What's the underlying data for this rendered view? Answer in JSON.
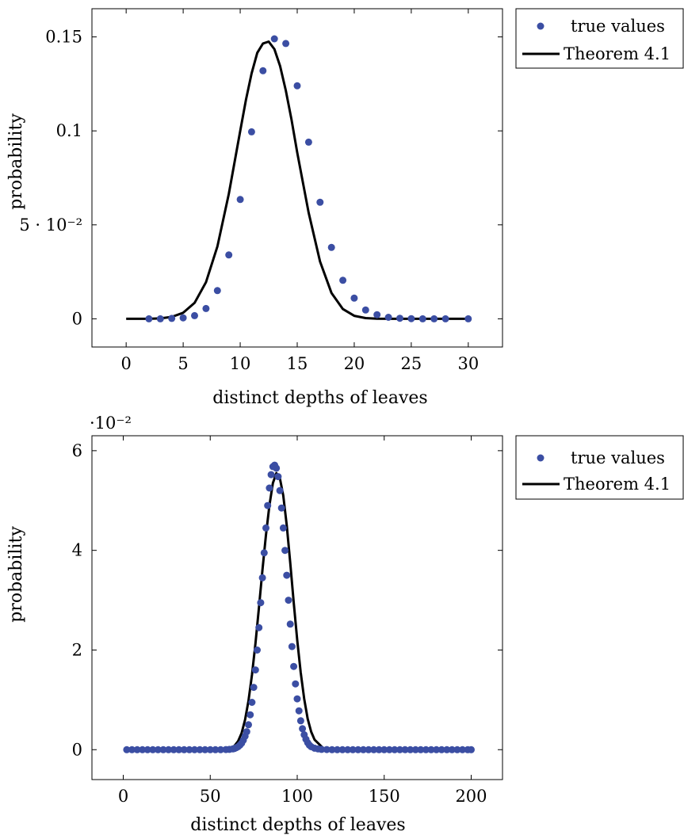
{
  "colors": {
    "points": "#3b4ea3",
    "curve": "#000000",
    "frame": "#000000"
  },
  "chart_data": [
    {
      "type": "scatter",
      "xlabel": "distinct depths of leaves",
      "ylabel": "probability",
      "xlim": [
        -3,
        33
      ],
      "ylim": [
        -0.015,
        0.165
      ],
      "xticks": [
        0,
        5,
        10,
        15,
        20,
        25,
        30
      ],
      "xtick_labels": [
        "0",
        "5",
        "10",
        "15",
        "20",
        "25",
        "30"
      ],
      "yticks": [
        0,
        0.05,
        0.1,
        0.15
      ],
      "ytick_labels": [
        "0",
        "5 · 10⁻²",
        "0.1",
        "0.15"
      ],
      "legend_position": "outside-top-right",
      "series": [
        {
          "name": "true values",
          "kind": "points",
          "x": [
            2,
            3,
            4,
            5,
            6,
            7,
            8,
            9,
            10,
            11,
            12,
            13,
            14,
            15,
            16,
            17,
            18,
            19,
            20,
            21,
            22,
            23,
            24,
            25,
            26,
            27,
            28,
            30
          ],
          "y": [
            0,
            0,
            0.0002,
            0.0005,
            0.0017,
            0.0055,
            0.015,
            0.034,
            0.0635,
            0.0995,
            0.132,
            0.149,
            0.1465,
            0.124,
            0.094,
            0.062,
            0.038,
            0.0205,
            0.011,
            0.0047,
            0.0022,
            0.0008,
            0.0003,
            0.0001,
            0,
            0,
            0,
            0
          ]
        },
        {
          "name": "Theorem 4.1",
          "kind": "curve",
          "x": [
            0,
            1,
            2,
            3,
            4,
            5,
            6,
            7,
            8,
            9,
            10,
            10.5,
            11,
            11.5,
            12,
            12.5,
            13,
            13.5,
            14,
            14.5,
            15,
            16,
            17,
            18,
            19,
            20,
            21,
            22,
            23,
            24,
            25,
            26,
            27,
            28,
            29,
            30
          ],
          "y": [
            0,
            0,
            0,
            0.0002,
            0.001,
            0.0032,
            0.0085,
            0.0195,
            0.0385,
            0.0665,
            0.1,
            0.1165,
            0.1305,
            0.1415,
            0.1465,
            0.1475,
            0.1435,
            0.1345,
            0.1215,
            0.106,
            0.0885,
            0.0565,
            0.0305,
            0.0138,
            0.0052,
            0.0016,
            0.0004,
            0.0001,
            0,
            0,
            0,
            0,
            0,
            0,
            0,
            0
          ]
        }
      ]
    },
    {
      "type": "scatter",
      "xlabel": "distinct depths of leaves",
      "ylabel": "probability",
      "scale_label": "·10⁻²",
      "xlim": [
        -18,
        218
      ],
      "ylim": [
        -0.6,
        6.3
      ],
      "xticks": [
        0,
        50,
        100,
        150,
        200
      ],
      "xtick_labels": [
        "0",
        "50",
        "100",
        "150",
        "200"
      ],
      "yticks": [
        0,
        2,
        4,
        6
      ],
      "ytick_labels": [
        "0",
        "2",
        "4",
        "6"
      ],
      "legend_position": "outside-top-right",
      "series": [
        {
          "name": "true values",
          "kind": "points",
          "x": [
            2,
            5,
            8,
            11,
            14,
            17,
            20,
            23,
            26,
            29,
            32,
            35,
            38,
            41,
            44,
            47,
            50,
            53,
            56,
            59,
            61,
            63,
            64,
            65,
            66,
            67,
            68,
            69,
            70,
            71,
            72,
            73,
            74,
            75,
            76,
            77,
            78,
            79,
            80,
            81,
            82,
            83,
            84,
            85,
            86,
            87,
            88,
            89,
            90,
            91,
            92,
            93,
            94,
            95,
            96,
            97,
            98,
            99,
            100,
            101,
            102,
            103,
            104,
            105,
            106,
            107,
            108,
            110,
            112,
            114,
            117,
            120,
            123,
            126,
            129,
            132,
            135,
            138,
            141,
            144,
            147,
            150,
            153,
            156,
            159,
            162,
            165,
            168,
            171,
            174,
            177,
            180,
            183,
            186,
            189,
            192,
            195,
            198,
            200
          ],
          "y": [
            0,
            0,
            0,
            0,
            0,
            0,
            0,
            0,
            0,
            0,
            0,
            0,
            0,
            0,
            0,
            0,
            0,
            0,
            0,
            0.002,
            0.006,
            0.015,
            0.025,
            0.04,
            0.06,
            0.09,
            0.13,
            0.19,
            0.27,
            0.36,
            0.5,
            0.7,
            0.95,
            1.25,
            1.6,
            2.0,
            2.45,
            2.95,
            3.45,
            3.95,
            4.45,
            4.9,
            5.25,
            5.52,
            5.68,
            5.71,
            5.65,
            5.48,
            5.2,
            4.85,
            4.45,
            4.0,
            3.5,
            3.0,
            2.52,
            2.07,
            1.67,
            1.32,
            1.02,
            0.78,
            0.58,
            0.42,
            0.3,
            0.21,
            0.14,
            0.09,
            0.06,
            0.03,
            0.015,
            0.006,
            0.002,
            0,
            0,
            0,
            0,
            0,
            0,
            0,
            0,
            0,
            0,
            0,
            0,
            0,
            0,
            0,
            0,
            0,
            0,
            0,
            0,
            0,
            0,
            0,
            0,
            0,
            0,
            0,
            0
          ]
        },
        {
          "name": "Theorem 4.1",
          "kind": "curve",
          "x": [
            2,
            20,
            40,
            55,
            60,
            62,
            64,
            66,
            68,
            70,
            72,
            74,
            76,
            78,
            80,
            82,
            84,
            86,
            88,
            90,
            92,
            94,
            96,
            98,
            100,
            102,
            104,
            106,
            108,
            110,
            115,
            120,
            140,
            170,
            200
          ],
          "y": [
            0,
            0,
            0,
            0,
            0.01,
            0.03,
            0.08,
            0.17,
            0.33,
            0.6,
            0.98,
            1.5,
            2.13,
            2.85,
            3.6,
            4.3,
            4.9,
            5.35,
            5.55,
            5.45,
            5.1,
            4.5,
            3.75,
            2.95,
            2.2,
            1.55,
            1.02,
            0.62,
            0.36,
            0.2,
            0.03,
            0,
            0,
            0,
            0
          ]
        }
      ]
    }
  ]
}
